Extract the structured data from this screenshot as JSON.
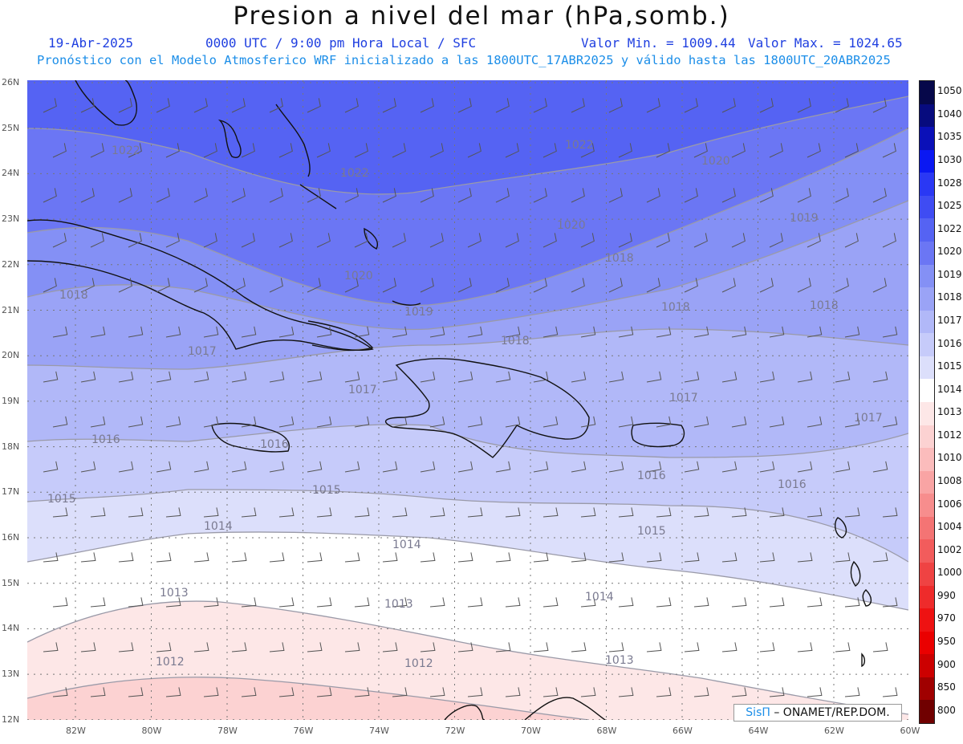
{
  "title": "Presion a nivel del mar (hPa,somb.)",
  "header": {
    "date": "19-Abr-2025",
    "time": "0000 UTC / 9:00 pm Hora Local / SFC",
    "min": "Valor Min. = 1009.44",
    "max": "Valor Max. = 1024.65",
    "model_line": "Pronóstico con el Modelo Atmosferico WRF inicializado a las 1800UTC_17ABR2025 y válido hasta las  1800UTC_20ABR2025"
  },
  "latitudes": [
    "26N",
    "25N",
    "24N",
    "23N",
    "22N",
    "21N",
    "20N",
    "19N",
    "18N",
    "17N",
    "16N",
    "15N",
    "14N",
    "13N",
    "12N"
  ],
  "longitudes": [
    "82W",
    "80W",
    "78W",
    "76W",
    "74W",
    "72W",
    "70W",
    "68W",
    "66W",
    "64W",
    "62W",
    "60W"
  ],
  "legend": [
    {
      "label": "1050",
      "color": "#06084a"
    },
    {
      "label": "1040",
      "color": "#070b7e"
    },
    {
      "label": "1035",
      "color": "#0a10b8"
    },
    {
      "label": "1030",
      "color": "#0a18f2"
    },
    {
      "label": "1028",
      "color": "#2a38f4"
    },
    {
      "label": "1025",
      "color": "#3f4cf3"
    },
    {
      "label": "1022",
      "color": "#5563f3"
    },
    {
      "label": "1020",
      "color": "#6b76f4"
    },
    {
      "label": "1019",
      "color": "#8490f5"
    },
    {
      "label": "1018",
      "color": "#9aa3f6"
    },
    {
      "label": "1017",
      "color": "#b1b8f8"
    },
    {
      "label": "1016",
      "color": "#c6cbfa"
    },
    {
      "label": "1015",
      "color": "#dcdffb"
    },
    {
      "label": "1014",
      "color": "#ffffff"
    },
    {
      "label": "1013",
      "color": "#fde7e7"
    },
    {
      "label": "1012",
      "color": "#fcd2d2"
    },
    {
      "label": "1010",
      "color": "#fbbcbc"
    },
    {
      "label": "1008",
      "color": "#f9a4a4"
    },
    {
      "label": "1006",
      "color": "#f78d8d"
    },
    {
      "label": "1004",
      "color": "#f47474"
    },
    {
      "label": "1002",
      "color": "#f25c5c"
    },
    {
      "label": "1000",
      "color": "#ef4343"
    },
    {
      "label": "990",
      "color": "#ee2b2b"
    },
    {
      "label": "970",
      "color": "#ee1212"
    },
    {
      "label": "950",
      "color": "#ea0000"
    },
    {
      "label": "900",
      "color": "#cc0000"
    },
    {
      "label": "850",
      "color": "#a00000"
    },
    {
      "label": "800",
      "color": "#700000"
    }
  ],
  "contour_labels": [
    {
      "text": "1022"
    },
    {
      "text": "1022"
    },
    {
      "text": "1022"
    },
    {
      "text": "1020"
    },
    {
      "text": "1020"
    },
    {
      "text": "1020"
    },
    {
      "text": "1019"
    },
    {
      "text": "1019"
    },
    {
      "text": "1018"
    },
    {
      "text": "1018"
    },
    {
      "text": "1018"
    },
    {
      "text": "1018"
    },
    {
      "text": "1018"
    },
    {
      "text": "1017"
    },
    {
      "text": "1017"
    },
    {
      "text": "1017"
    },
    {
      "text": "1017"
    },
    {
      "text": "1016"
    },
    {
      "text": "1016"
    },
    {
      "text": "1016"
    },
    {
      "text": "1016"
    },
    {
      "text": "1015"
    },
    {
      "text": "1015"
    },
    {
      "text": "1015"
    },
    {
      "text": "1014"
    },
    {
      "text": "1014"
    },
    {
      "text": "1014"
    },
    {
      "text": "1013"
    },
    {
      "text": "1013"
    },
    {
      "text": "1013"
    },
    {
      "text": "1012"
    },
    {
      "text": "1012"
    }
  ],
  "credit": {
    "logo": "SisΠ",
    "text": " – ONAMET/REP.DOM."
  }
}
